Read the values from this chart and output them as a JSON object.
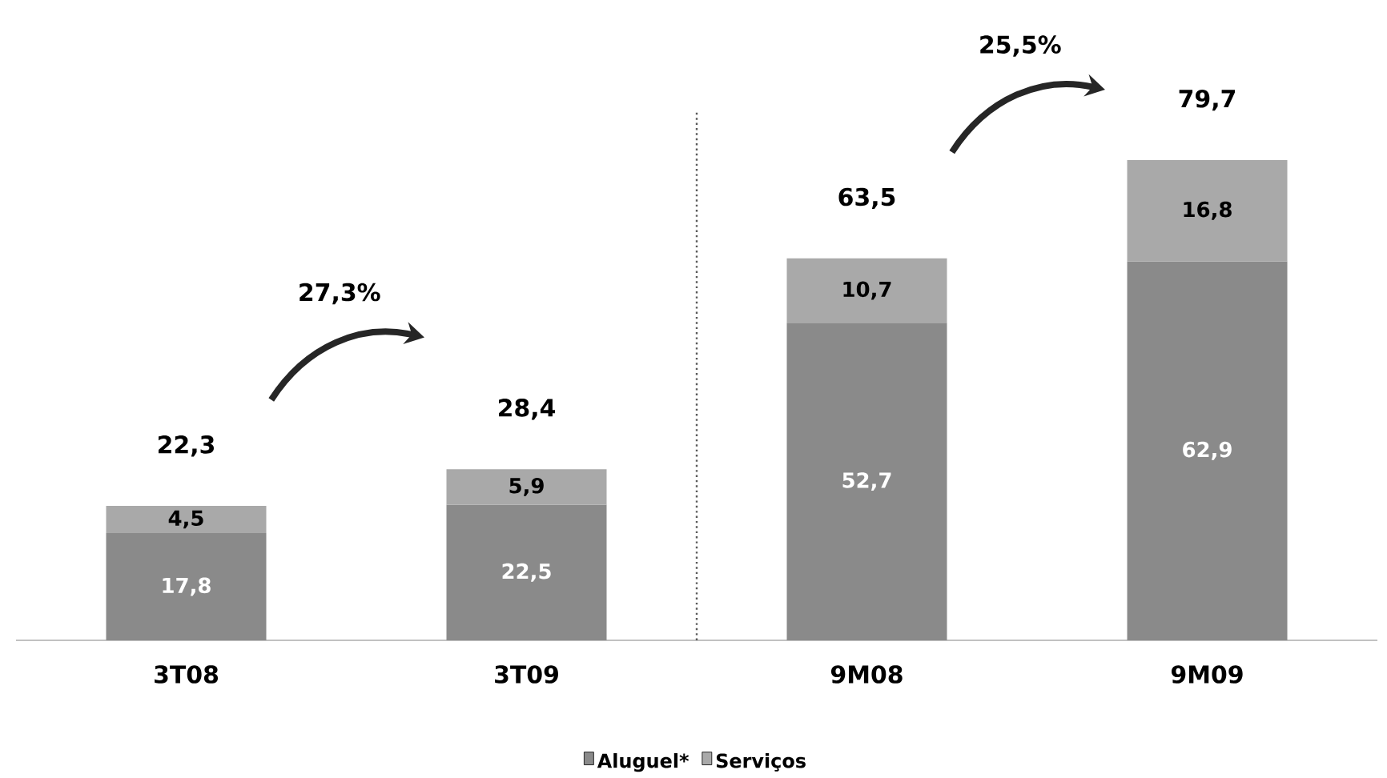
{
  "chart_data": {
    "type": "bar",
    "stacked": true,
    "categories": [
      "3T08",
      "3T09",
      "9M08",
      "9M09"
    ],
    "series": [
      {
        "name": "Aluguel*",
        "color": "#8a8a8a",
        "values": [
          17.8,
          22.5,
          52.7,
          62.9
        ],
        "value_labels": [
          "17,8",
          "22,5",
          "52,7",
          "62,9"
        ]
      },
      {
        "name": "Serviços",
        "color": "#a9a9a9",
        "values": [
          4.5,
          5.9,
          10.7,
          16.8
        ],
        "value_labels": [
          "4,5",
          "5,9",
          "10,7",
          "16,8"
        ]
      }
    ],
    "totals": [
      "22,3",
      "28,4",
      "63,5",
      "79,7"
    ],
    "annotations": [
      "27,3%",
      "25,5%"
    ],
    "legend": "bottom"
  }
}
